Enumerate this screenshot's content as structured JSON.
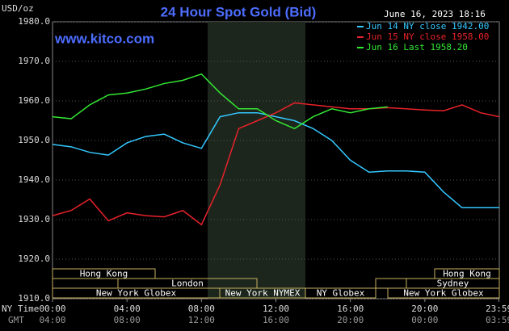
{
  "chart_data": {
    "type": "line",
    "title": "24 Hour Spot Gold (Bid)",
    "unit_label": "USD/oz",
    "timestamp": "June 16, 2023 18:16",
    "site": "www.kitco.com",
    "x": [
      0,
      1,
      2,
      3,
      4,
      5,
      6,
      7,
      8,
      9,
      10,
      11,
      12,
      13,
      14,
      15,
      16,
      17,
      18,
      19,
      20,
      21,
      22,
      23,
      24
    ],
    "xlim": [
      0,
      24
    ],
    "xticks": [
      {
        "value": 0,
        "label": "00:00"
      },
      {
        "value": 4,
        "label": "04:00"
      },
      {
        "value": 8,
        "label": "08:00"
      },
      {
        "value": 12,
        "label": "12:00"
      },
      {
        "value": 16,
        "label": "16:00"
      },
      {
        "value": 20,
        "label": "20:00"
      },
      {
        "value": 23.98,
        "label": "23:59"
      }
    ],
    "gmt_tick_labels": [
      "04:00",
      "08:00",
      "12:00",
      "16:00",
      "20:00",
      "00:00",
      "03:59"
    ],
    "x_row_labels": [
      "NY Time",
      "GMT"
    ],
    "ylim": [
      1910,
      1980
    ],
    "yticks": [
      {
        "value": 1910,
        "label": "1910.0"
      },
      {
        "value": 1920,
        "label": "1920.0"
      },
      {
        "value": 1930,
        "label": "1930.0"
      },
      {
        "value": 1940,
        "label": "1940.0"
      },
      {
        "value": 1950,
        "label": "1950.0"
      },
      {
        "value": 1960,
        "label": "1960.0"
      },
      {
        "value": 1970,
        "label": "1970.0"
      },
      {
        "value": 1980,
        "label": "1980.0"
      }
    ],
    "grid": true,
    "series": [
      {
        "name": "Jun 14 NY close 1942.00",
        "color": "#33c8ff",
        "values": [
          1949,
          1948.4,
          1947,
          1946.3,
          1949.4,
          1951,
          1951.6,
          1949.4,
          1948,
          1956,
          1957,
          1957,
          1956,
          1955,
          1953,
          1950,
          1945,
          1942,
          1942.3,
          1942.3,
          1942,
          1937,
          1933,
          1933,
          1933
        ]
      },
      {
        "name": "Jun 15 NY close 1958.00",
        "color": "#e8222a",
        "values": [
          1931,
          1932.3,
          1935.2,
          1929.7,
          1931.7,
          1931,
          1930.7,
          1932.3,
          1928.7,
          1938.8,
          1953,
          1955,
          1957,
          1959.5,
          1959,
          1958.5,
          1958,
          1958,
          1958.3,
          1958,
          1957.7,
          1957.5,
          1959,
          1957,
          1956
        ]
      },
      {
        "name": "Jun 16 Last 1958.20",
        "color": "#33e833",
        "values": [
          1956,
          1955.5,
          1959,
          1961.5,
          1962,
          1963,
          1964.4,
          1965.2,
          1966.8,
          1962,
          1958,
          1958,
          1955,
          1953,
          1956,
          1958,
          1957,
          1958,
          1958.5,
          null,
          null,
          null,
          null,
          null,
          null
        ]
      }
    ],
    "sessions": [
      "Hong Kong",
      "Hong Kong",
      "London",
      "Sydney",
      "New York Globex",
      "New York NYMEX",
      "NY Globex",
      "New York Globex"
    ]
  }
}
